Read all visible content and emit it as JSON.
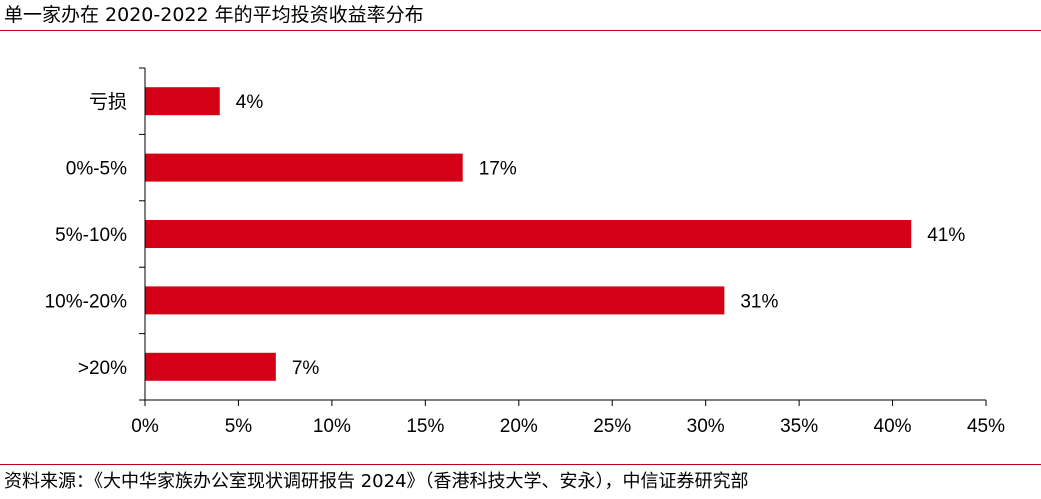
{
  "chart_data": {
    "type": "bar",
    "orientation": "horizontal",
    "title": "单一家办在 2020-2022 年的平均投资收益率分布",
    "categories": [
      "亏损",
      "0%-5%",
      "5%-10%",
      "10%-20%",
      ">20%"
    ],
    "values": [
      4,
      17,
      41,
      31,
      7
    ],
    "data_labels": [
      "4%",
      "17%",
      "41%",
      "31%",
      "7%"
    ],
    "xlim": [
      0,
      45
    ],
    "xticks": [
      0,
      5,
      10,
      15,
      20,
      25,
      30,
      35,
      40,
      45
    ],
    "xtick_labels": [
      "0%",
      "5%",
      "10%",
      "15%",
      "20%",
      "25%",
      "30%",
      "35%",
      "40%",
      "45%"
    ],
    "xlabel": "",
    "ylabel": "",
    "grid": false,
    "legend": "none",
    "bar_color": "#d40016",
    "source": "资料来源：《大中华家族办公室现状调研报告 2024》（香港科技大学、安永），中信证券研究部"
  }
}
